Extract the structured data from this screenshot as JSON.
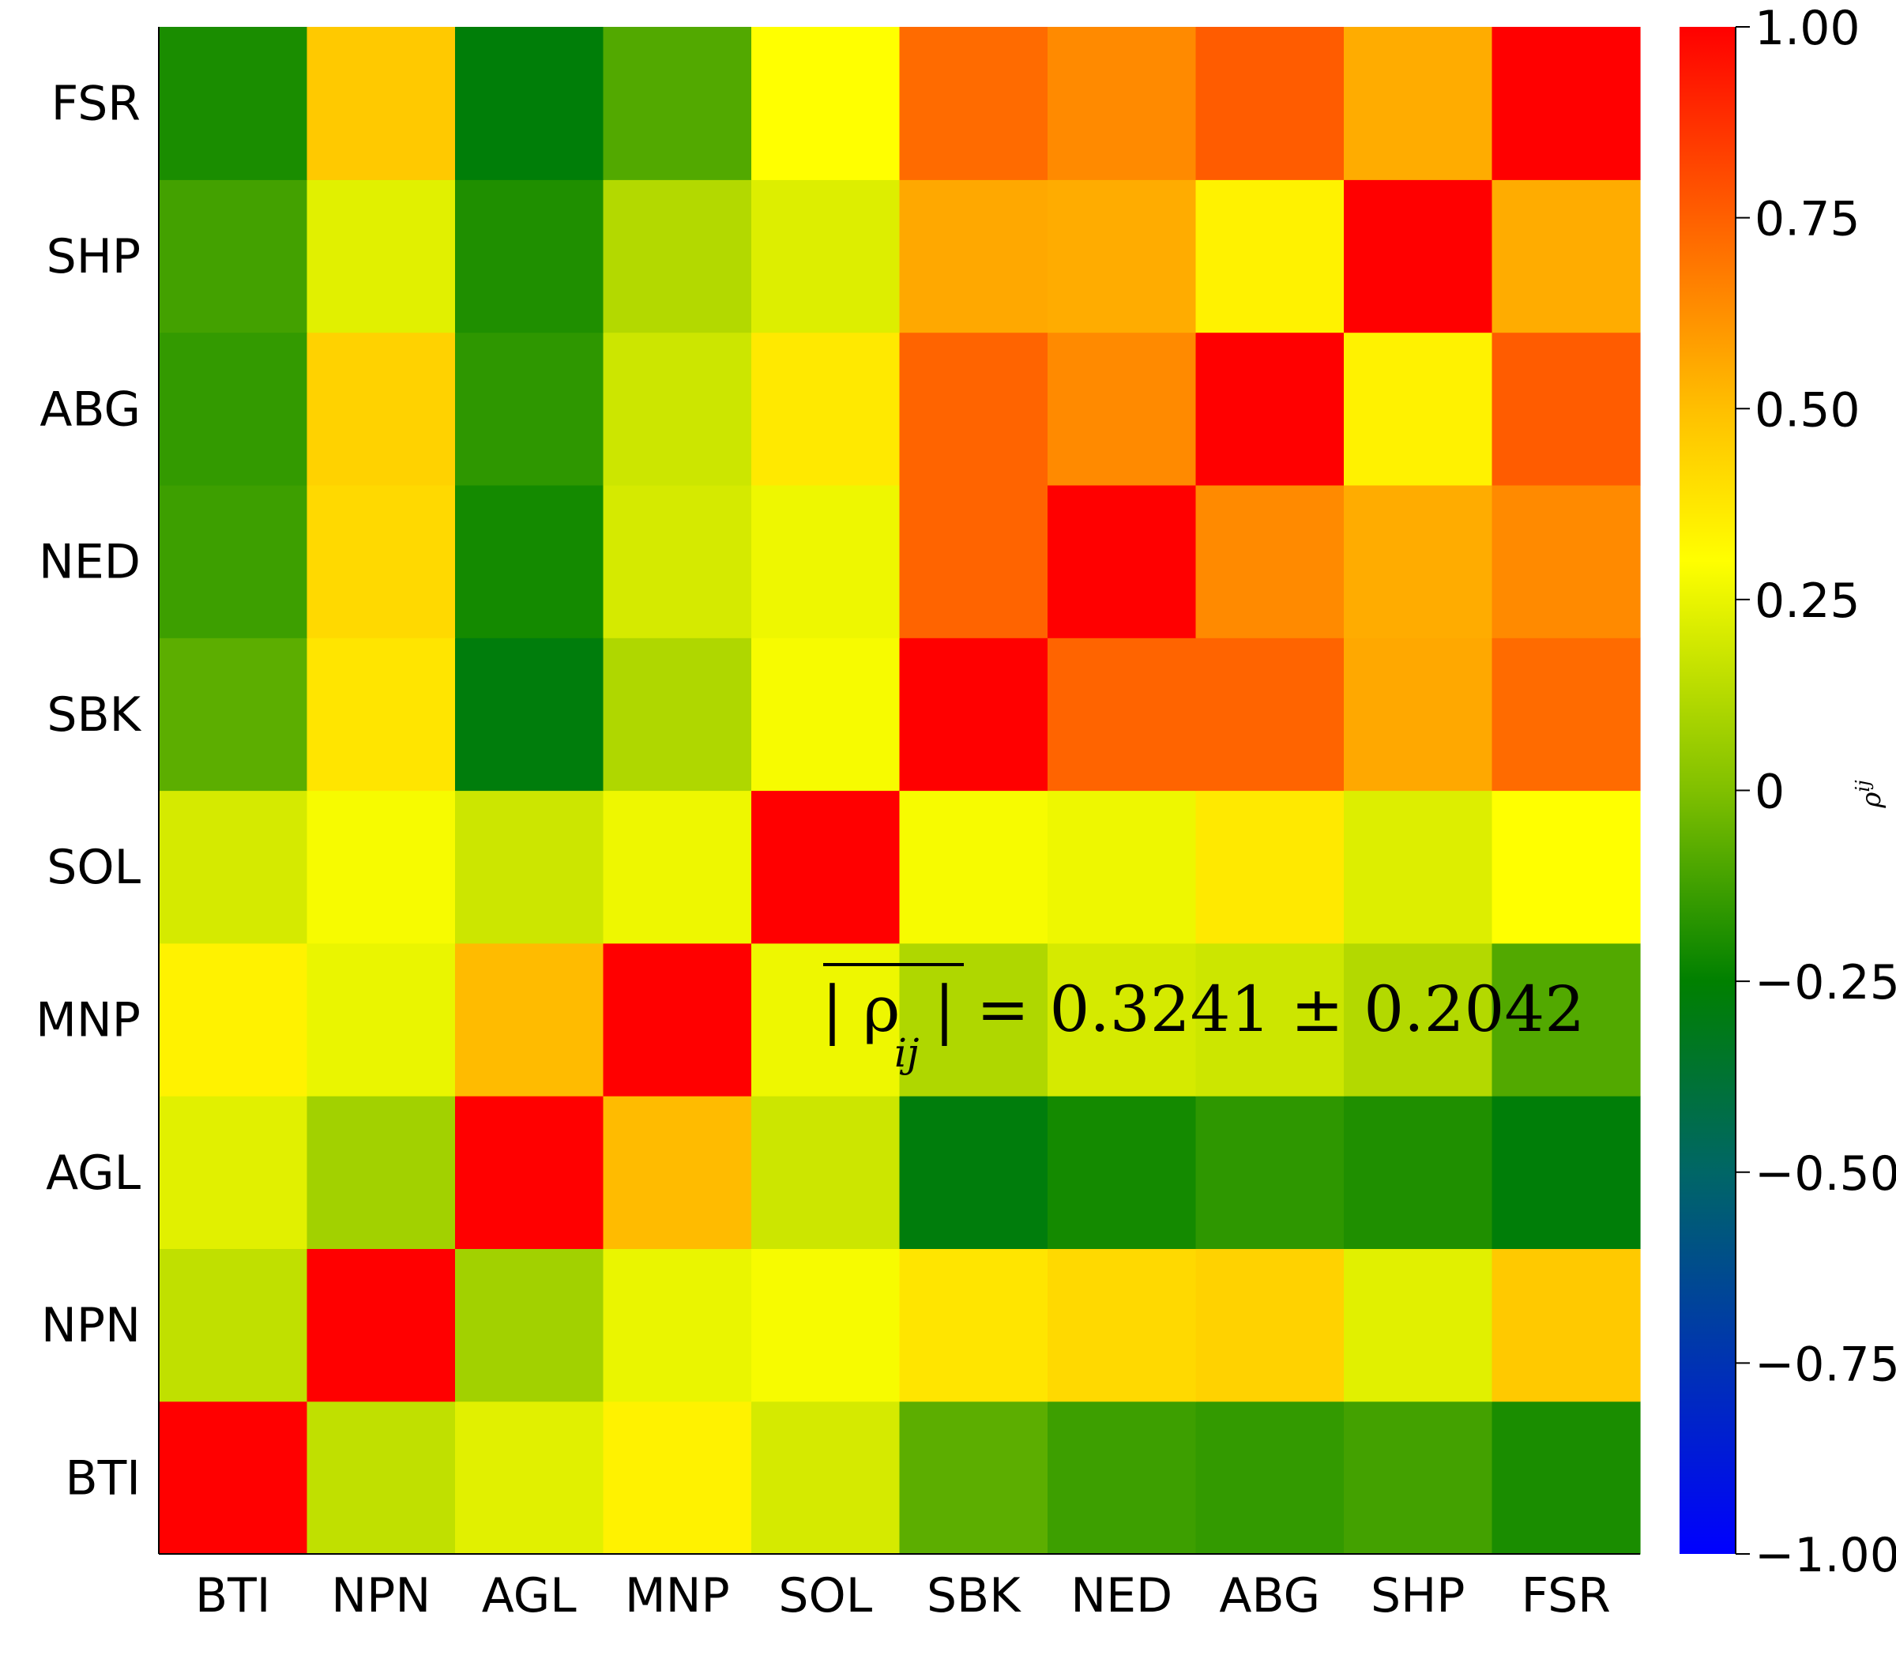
{
  "chart_data": {
    "type": "heatmap",
    "x_labels": [
      "BTI",
      "NPN",
      "AGL",
      "MNP",
      "SOL",
      "SBK",
      "NED",
      "ABG",
      "SHP",
      "FSR"
    ],
    "y_labels": [
      "BTI",
      "NPN",
      "AGL",
      "MNP",
      "SOL",
      "SBK",
      "NED",
      "ABG",
      "SHP",
      "FSR"
    ],
    "values": [
      [
        1.0,
        0.15,
        0.23,
        0.34,
        0.2,
        -0.07,
        -0.13,
        -0.15,
        -0.12,
        -0.2
      ],
      [
        0.15,
        1.0,
        0.08,
        0.25,
        0.28,
        0.38,
        0.42,
        0.44,
        0.23,
        0.47
      ],
      [
        0.23,
        0.08,
        1.0,
        0.51,
        0.18,
        -0.28,
        -0.21,
        -0.16,
        -0.19,
        -0.27
      ],
      [
        0.34,
        0.25,
        0.51,
        1.0,
        0.26,
        0.11,
        0.2,
        0.18,
        0.12,
        -0.09
      ],
      [
        0.2,
        0.28,
        0.18,
        0.26,
        1.0,
        0.28,
        0.26,
        0.37,
        0.22,
        0.3
      ],
      [
        -0.07,
        0.38,
        -0.28,
        0.11,
        0.28,
        1.0,
        0.74,
        0.74,
        0.56,
        0.72
      ],
      [
        -0.13,
        0.42,
        -0.21,
        0.2,
        0.26,
        0.74,
        1.0,
        0.64,
        0.55,
        0.64
      ],
      [
        -0.15,
        0.44,
        -0.16,
        0.18,
        0.37,
        0.74,
        0.64,
        1.0,
        0.34,
        0.76
      ],
      [
        -0.12,
        0.23,
        -0.19,
        0.12,
        0.22,
        0.56,
        0.55,
        0.34,
        1.0,
        0.55
      ],
      [
        -0.2,
        0.47,
        -0.27,
        -0.09,
        0.3,
        0.72,
        0.64,
        0.76,
        0.55,
        1.0
      ]
    ],
    "colorbar": {
      "range": [
        -1.0,
        1.0
      ],
      "ticks": [
        1.0,
        0.75,
        0.5,
        0.25,
        0,
        -0.25,
        -0.5,
        -0.75,
        -1.0
      ],
      "tick_labels": [
        "1.00",
        "0.75",
        "0.50",
        "0.25",
        "0",
        "−0.25",
        "−0.50",
        "−0.75",
        "−1.00"
      ],
      "label": "ρ",
      "label_sup": "ij",
      "stops": [
        {
          "v": -1.0,
          "color": "#0000ff"
        },
        {
          "v": -0.5,
          "color": "#006666"
        },
        {
          "v": -0.25,
          "color": "#008000"
        },
        {
          "v": 0.0,
          "color": "#80c000"
        },
        {
          "v": 0.3,
          "color": "#ffff00"
        },
        {
          "v": 0.5,
          "color": "#ffbf00"
        },
        {
          "v": 0.75,
          "color": "#ff6000"
        },
        {
          "v": 1.0,
          "color": "#ff0000"
        }
      ]
    },
    "annotation": {
      "lhs": "| ρ",
      "lhs_sub": "ij",
      "lhs_close": "|",
      "rhs": "= 0.3241 ± 0.2042"
    }
  }
}
